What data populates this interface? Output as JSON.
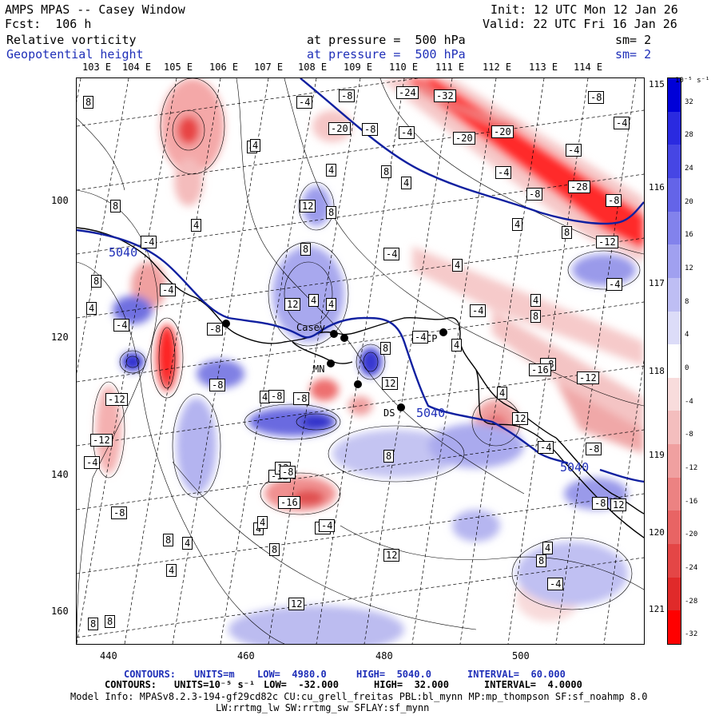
{
  "header": {
    "title": "AMPS MPAS -- Casey Window",
    "forecast": "Fcst:  106 h",
    "init": "Init: 12 UTC Mon 12 Jan 26",
    "valid": "Valid: 22 UTC Fri 16 Jan 26",
    "field1": {
      "name": "Relative vorticity",
      "level": "at pressure =  500 hPa",
      "smooth": "sm= 2"
    },
    "field2": {
      "name": "Geopotential height",
      "level": "at pressure =  500 hPa",
      "smooth": "sm= 2"
    }
  },
  "top_lon_labels": [
    "103 E",
    "104 E",
    "105 E",
    "106 E",
    "107 E",
    "108 E",
    "109 E",
    "110 E",
    "111 E",
    "112 E",
    "113 E",
    "114 E"
  ],
  "right_lon_labels": [
    "115 E",
    "116 E",
    "117 E",
    "118 E",
    "119 E",
    "120 E",
    "121 E"
  ],
  "x_ticks": [
    "440",
    "460",
    "480",
    "500"
  ],
  "y_ticks": [
    "100",
    "120",
    "140",
    "160"
  ],
  "colorbar": {
    "unit": "10⁻⁵ s⁻¹",
    "labels": [
      "32",
      "28",
      "24",
      "20",
      "16",
      "12",
      "8",
      "4",
      "0",
      "-4",
      "-8",
      "-12",
      "-16",
      "-20",
      "-24",
      "-28",
      "-32"
    ],
    "colors": [
      "#0000d8",
      "#2a2ae0",
      "#4646e4",
      "#6464e8",
      "#8282ec",
      "#a0a0f0",
      "#bebef4",
      "#dcdcf8",
      "#ffffff",
      "#f8dcdc",
      "#f4bebe",
      "#f0a0a0",
      "#ec8282",
      "#e86464",
      "#e44646",
      "#e02a2a",
      "#ff0000"
    ]
  },
  "station_labels": [
    "Casey",
    "CP",
    "DS",
    "MN"
  ],
  "height_contour_labels": [
    "5040",
    "5040",
    "5040"
  ],
  "vorticity_labels": [
    "8",
    "-4",
    "-8",
    "-24",
    "-32",
    "-8",
    "4",
    "-20",
    "-8",
    "-4",
    "-20",
    "-20",
    "-4",
    "-4",
    "4",
    "4",
    "8",
    "4",
    "-4",
    "-8",
    "-28",
    "-8",
    "8",
    "12",
    "8",
    "4",
    "8",
    "-4",
    "4",
    "-4",
    "-12",
    "-4",
    "-4",
    "4",
    "8",
    "4",
    "8",
    "-4",
    "8",
    "12",
    "4",
    "4",
    "-8",
    "4",
    "-4",
    "-8",
    "-4",
    "4",
    "8",
    "12",
    "-8",
    "-12",
    "-12",
    "4",
    "-16",
    "-12",
    "-8",
    "4",
    "-8",
    "-4",
    "-8",
    "12",
    "8",
    "-12",
    "-8",
    "12",
    "-4",
    "8",
    "-8",
    "-16",
    "12",
    "4",
    "-4",
    "12",
    "-8",
    "4",
    "8",
    "4",
    "-4",
    "4",
    "8",
    "4",
    "12",
    "12",
    "8",
    "8"
  ],
  "footer": {
    "contour1": {
      "label": "CONTOURS:",
      "units": "UNITS=m",
      "low": "LOW=  4980.0",
      "high": "HIGH=  5040.0",
      "interval": "INTERVAL=  60.000"
    },
    "contour2": {
      "label": "CONTOURS:",
      "units": "UNITS=10⁻⁵ s⁻¹",
      "low": "LOW=  -32.000",
      "high": "HIGH=  32.000",
      "interval": "INTERVAL=  4.0000"
    },
    "model_info": "Model Info: MPASv8.2.3-194-gf29cd82c CU:cu_grell_freitas PBL:bl_mynn MP:mp_thompson SF:sf_noahmp 8.0",
    "model_info2": "LW:rrtmg_lw SW:rrtmg_sw SFLAY:sf_mynn"
  }
}
